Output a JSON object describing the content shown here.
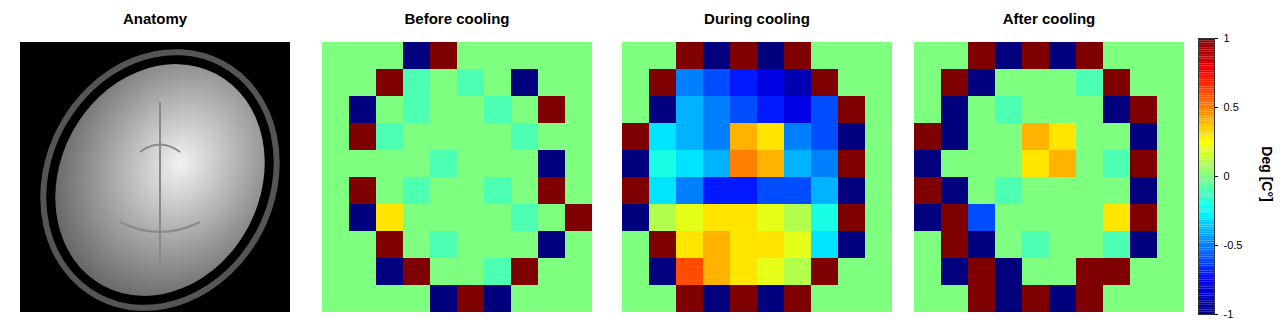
{
  "chart_data": {
    "type": "heatmap",
    "color": "jet",
    "panels": [
      {
        "title": "Anatomy",
        "type": "image"
      },
      {
        "title": "Before cooling",
        "cells": [
          [
            0,
            0,
            0,
            -1,
            1,
            0,
            0,
            0,
            0,
            0
          ],
          [
            0,
            0,
            1,
            -0.1,
            0,
            -0.1,
            0,
            -1,
            0,
            0
          ],
          [
            0,
            -1,
            0,
            -0.1,
            0,
            0,
            -0.1,
            0,
            1,
            0
          ],
          [
            0,
            1,
            -0.1,
            0,
            0,
            0,
            0,
            -0.1,
            0,
            0
          ],
          [
            0,
            0,
            0,
            0,
            -0.1,
            0,
            0,
            0,
            -1,
            0
          ],
          [
            0,
            1,
            0,
            -0.1,
            0,
            0,
            -0.1,
            0,
            1,
            0
          ],
          [
            0,
            -1,
            0.3,
            0,
            0,
            0,
            0,
            -0.1,
            0,
            1
          ],
          [
            0,
            0,
            1,
            0,
            -0.1,
            0,
            0,
            0,
            -1,
            0
          ],
          [
            0,
            0,
            -1,
            1,
            0,
            0,
            -0.1,
            1,
            0,
            0
          ],
          [
            0,
            0,
            0,
            0,
            -1,
            1,
            -1,
            0,
            0,
            0
          ]
        ]
      },
      {
        "title": "During cooling",
        "cells": [
          [
            0,
            0,
            1,
            -1,
            1,
            -1,
            1,
            0,
            0,
            0
          ],
          [
            0,
            1,
            -0.5,
            -0.6,
            -0.7,
            -0.8,
            -0.9,
            1,
            0,
            0
          ],
          [
            0,
            -1,
            -0.4,
            -0.5,
            -0.6,
            -0.7,
            -0.8,
            -0.6,
            1,
            0
          ],
          [
            1,
            -0.3,
            -0.4,
            -0.5,
            0.4,
            0.3,
            -0.5,
            -0.6,
            -1,
            0
          ],
          [
            -1,
            -0.2,
            -0.3,
            -0.4,
            0.5,
            0.4,
            -0.4,
            -0.5,
            1,
            0
          ],
          [
            1,
            -0.3,
            -0.5,
            -0.7,
            -0.7,
            -0.6,
            -0.6,
            -0.4,
            -1,
            0
          ],
          [
            -1,
            0.1,
            0.2,
            0.3,
            0.3,
            0.2,
            0.1,
            -0.2,
            1,
            0
          ],
          [
            0,
            1,
            0.3,
            0.4,
            0.3,
            0.3,
            0.2,
            -0.3,
            -1,
            0
          ],
          [
            0,
            -1,
            0.6,
            0.4,
            0.3,
            0.2,
            0.1,
            1,
            0,
            0
          ],
          [
            0,
            0,
            1,
            -1,
            1,
            -1,
            1,
            0,
            0,
            0
          ]
        ]
      },
      {
        "title": "After cooling",
        "cells": [
          [
            0,
            0,
            1,
            -1,
            1,
            -1,
            1,
            0,
            0,
            0
          ],
          [
            0,
            1,
            -1,
            0,
            0,
            0,
            -0.1,
            1,
            0,
            0
          ],
          [
            0,
            -1,
            0,
            -0.1,
            0,
            0,
            0,
            -1,
            1,
            0
          ],
          [
            1,
            -1,
            0,
            0,
            0.4,
            0.3,
            0,
            0,
            -1,
            0
          ],
          [
            -1,
            0,
            0,
            0,
            0.3,
            0.4,
            0,
            -0.1,
            1,
            0
          ],
          [
            1,
            -1,
            0,
            -0.1,
            0,
            0,
            0,
            0,
            -1,
            0
          ],
          [
            -1,
            1,
            -0.6,
            0,
            0,
            0,
            0,
            0.3,
            1,
            0
          ],
          [
            0,
            1,
            -1,
            0,
            -0.1,
            0,
            0,
            -0.1,
            -1,
            0
          ],
          [
            0,
            -1,
            1,
            -1,
            0,
            0,
            1,
            1,
            0,
            0
          ],
          [
            0,
            0,
            1,
            -1,
            1,
            -1,
            1,
            0,
            0,
            0
          ]
        ]
      }
    ],
    "colorbar": {
      "label": "Deg [C°]",
      "range": [
        -1,
        1
      ],
      "ticks": [
        1,
        0.5,
        0,
        -0.5,
        -1
      ]
    }
  }
}
